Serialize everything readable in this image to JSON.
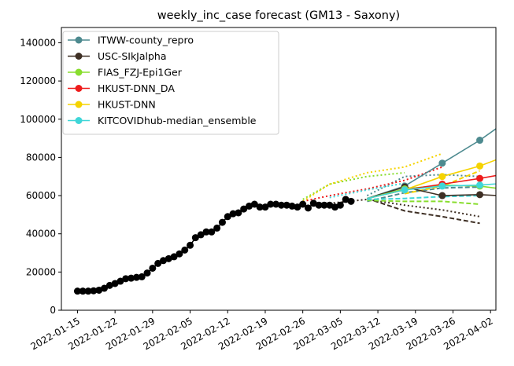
{
  "chart_data": {
    "type": "line",
    "title": "weekly_inc_case forecast (GM13 - Saxony)",
    "xlabel": "",
    "ylabel": "",
    "x_ticks": [
      "2022-01-15",
      "2022-01-22",
      "2022-01-29",
      "2022-02-05",
      "2022-02-12",
      "2022-02-19",
      "2022-02-26",
      "2022-03-05",
      "2022-03-12",
      "2022-03-19",
      "2022-03-26",
      "2022-04-02"
    ],
    "x_range": [
      "2022-01-12",
      "2022-04-03"
    ],
    "y_ticks": [
      0,
      20000,
      40000,
      60000,
      80000,
      100000,
      120000,
      140000
    ],
    "ylim": [
      0,
      148000
    ],
    "legend_position": "top-left",
    "grid": false,
    "observed": {
      "color": "#000000",
      "points": [
        [
          "2022-01-15",
          10000
        ],
        [
          "2022-01-16",
          10000
        ],
        [
          "2022-01-17",
          10000
        ],
        [
          "2022-01-18",
          10200
        ],
        [
          "2022-01-19",
          10500
        ],
        [
          "2022-01-20",
          11500
        ],
        [
          "2022-01-21",
          13000
        ],
        [
          "2022-01-22",
          14000
        ],
        [
          "2022-01-23",
          15200
        ],
        [
          "2022-01-24",
          16500
        ],
        [
          "2022-01-25",
          16800
        ],
        [
          "2022-01-26",
          17200
        ],
        [
          "2022-01-27",
          17500
        ],
        [
          "2022-01-28",
          19500
        ],
        [
          "2022-01-29",
          22000
        ],
        [
          "2022-01-30",
          24500
        ],
        [
          "2022-01-31",
          26000
        ],
        [
          "2022-02-01",
          27000
        ],
        [
          "2022-02-02",
          28000
        ],
        [
          "2022-02-03",
          29500
        ],
        [
          "2022-02-04",
          31500
        ],
        [
          "2022-02-05",
          34000
        ],
        [
          "2022-02-06",
          38000
        ],
        [
          "2022-02-07",
          39500
        ],
        [
          "2022-02-08",
          41000
        ],
        [
          "2022-02-09",
          41000
        ],
        [
          "2022-02-10",
          43000
        ],
        [
          "2022-02-11",
          46000
        ],
        [
          "2022-02-12",
          49000
        ],
        [
          "2022-02-13",
          50500
        ],
        [
          "2022-02-14",
          51000
        ],
        [
          "2022-02-15",
          53000
        ],
        [
          "2022-02-16",
          54500
        ],
        [
          "2022-02-17",
          55500
        ],
        [
          "2022-02-18",
          54000
        ],
        [
          "2022-02-19",
          54000
        ],
        [
          "2022-02-20",
          55500
        ],
        [
          "2022-02-21",
          55500
        ],
        [
          "2022-02-22",
          55000
        ],
        [
          "2022-02-23",
          55000
        ],
        [
          "2022-02-24",
          54500
        ],
        [
          "2022-02-25",
          54000
        ],
        [
          "2022-02-26",
          55500
        ],
        [
          "2022-02-27",
          53500
        ],
        [
          "2022-02-28",
          56000
        ],
        [
          "2022-03-01",
          55000
        ],
        [
          "2022-03-02",
          55000
        ],
        [
          "2022-03-03",
          55000
        ],
        [
          "2022-03-04",
          54000
        ],
        [
          "2022-03-05",
          55000
        ],
        [
          "2022-03-06",
          58000
        ],
        [
          "2022-03-07",
          57000
        ]
      ]
    },
    "series": [
      {
        "name": "ITWW-county_repro",
        "color": "#4d8a8f",
        "values": [
          [
            "2022-03-10",
            58500
          ],
          [
            "2022-03-17",
            65000
          ],
          [
            "2022-03-24",
            77000
          ],
          [
            "2022-03-31",
            89000
          ],
          [
            "2022-04-07",
            103000
          ]
        ],
        "dashed": [
          [
            "2022-03-10",
            57000
          ],
          [
            "2022-03-17",
            61500
          ],
          [
            "2022-03-24",
            64000
          ],
          [
            "2022-03-31",
            64500
          ]
        ],
        "dotted": [
          [
            "2022-03-10",
            60000
          ],
          [
            "2022-03-17",
            70000
          ],
          [
            "2022-03-24",
            71000
          ],
          [
            "2022-03-31",
            70000
          ]
        ]
      },
      {
        "name": "USC-SIkJalpha",
        "color": "#3e2f24",
        "values": [
          [
            "2022-03-10",
            58500
          ],
          [
            "2022-03-17",
            64500
          ],
          [
            "2022-03-24",
            60000
          ],
          [
            "2022-03-31",
            60500
          ],
          [
            "2022-04-07",
            59500
          ]
        ],
        "dashed": [
          [
            "2022-03-10",
            58500
          ],
          [
            "2022-03-17",
            52000
          ],
          [
            "2022-03-24",
            49000
          ],
          [
            "2022-03-31",
            45500
          ]
        ],
        "dotted": [
          [
            "2022-03-03",
            56000
          ],
          [
            "2022-03-10",
            58000
          ],
          [
            "2022-03-17",
            55000
          ],
          [
            "2022-03-24",
            52500
          ],
          [
            "2022-03-31",
            49000
          ]
        ]
      },
      {
        "name": "FIAS_FZJ-Epi1Ger",
        "color": "#88dd2e",
        "values": [
          [
            "2022-03-10",
            58500
          ],
          [
            "2022-03-17",
            63500
          ],
          [
            "2022-03-24",
            65500
          ],
          [
            "2022-03-31",
            65000
          ],
          [
            "2022-04-07",
            62500
          ]
        ],
        "dashed": [
          [
            "2022-03-10",
            57500
          ],
          [
            "2022-03-17",
            57000
          ],
          [
            "2022-03-24",
            57000
          ],
          [
            "2022-03-31",
            55500
          ]
        ],
        "dotted": [
          [
            "2022-02-26",
            58000
          ],
          [
            "2022-03-03",
            66000
          ],
          [
            "2022-03-10",
            70000
          ],
          [
            "2022-03-17",
            72000
          ]
        ]
      },
      {
        "name": "HKUST-DNN_DA",
        "color": "#ee1c1c",
        "values": [
          [
            "2022-03-10",
            58500
          ],
          [
            "2022-03-17",
            63000
          ],
          [
            "2022-03-24",
            66000
          ],
          [
            "2022-03-31",
            69000
          ],
          [
            "2022-04-07",
            72500
          ]
        ],
        "dashed": [],
        "dotted": [
          [
            "2022-02-26",
            57000
          ],
          [
            "2022-03-03",
            60000
          ],
          [
            "2022-03-10",
            63500
          ],
          [
            "2022-03-17",
            68000
          ],
          [
            "2022-03-24",
            75000
          ]
        ]
      },
      {
        "name": "HKUST-DNN",
        "color": "#f5d300",
        "values": [
          [
            "2022-03-10",
            58500
          ],
          [
            "2022-03-17",
            63000
          ],
          [
            "2022-03-24",
            70000
          ],
          [
            "2022-03-31",
            75500
          ],
          [
            "2022-04-07",
            83000
          ]
        ],
        "dashed": [
          [
            "2022-03-17",
            61000
          ],
          [
            "2022-03-24",
            65000
          ],
          [
            "2022-03-31",
            73000
          ]
        ],
        "dotted": [
          [
            "2022-02-26",
            57000
          ],
          [
            "2022-03-03",
            66000
          ],
          [
            "2022-03-10",
            72000
          ],
          [
            "2022-03-17",
            75000
          ],
          [
            "2022-03-24",
            82000
          ]
        ]
      },
      {
        "name": "KITCOVIDhub-median_ensemble",
        "color": "#3fd6d8",
        "values": [
          [
            "2022-03-10",
            58500
          ],
          [
            "2022-03-17",
            63000
          ],
          [
            "2022-03-24",
            65000
          ],
          [
            "2022-03-31",
            65500
          ],
          [
            "2022-04-07",
            67000
          ]
        ],
        "dashed": [
          [
            "2022-03-10",
            58000
          ],
          [
            "2022-03-17",
            58500
          ],
          [
            "2022-03-24",
            59500
          ],
          [
            "2022-03-31",
            60000
          ]
        ],
        "dotted": [
          [
            "2022-03-03",
            59000
          ],
          [
            "2022-03-10",
            63000
          ],
          [
            "2022-03-17",
            66500
          ]
        ]
      }
    ]
  }
}
